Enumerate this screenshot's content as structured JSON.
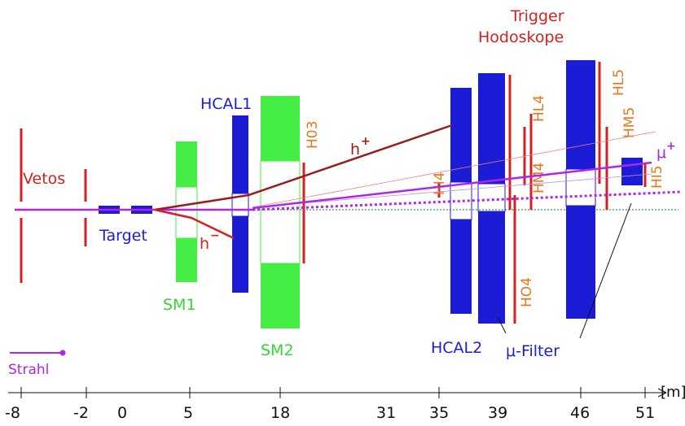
{
  "colors": {
    "veto": "#d42020",
    "target": "#1c1cd6",
    "magnet": "#33ee33",
    "hcal": "#1c1cd6",
    "hodoscope": "#d42020",
    "hodoscope_label": "#e8781e",
    "hadron_plus": "#9b1b1b",
    "hadron_minus": "#d42020",
    "muon": "#b026e8",
    "axis": "#111111"
  },
  "labels": {
    "vetos": "Vetos",
    "target": "Target",
    "sm1": "SM1",
    "sm2": "SM2",
    "hcal1": "HCAL1",
    "hcal2": "HCAL2",
    "mu_filter": "μ-Filter",
    "trigger_line1": "Trigger",
    "trigger_line2": "Hodoskope",
    "strahl": "Strahl",
    "h_plus": "h",
    "h_plus_sign": "+",
    "h_minus": "h",
    "h_minus_sign": "−",
    "mu_plus": "μ",
    "mu_plus_sign": "+",
    "h03": "H03",
    "hi4": "HI4",
    "hl4": "HL4",
    "hm4": "HM4",
    "ho4": "HO4",
    "hl5": "HL5",
    "hm5": "HM5",
    "hi5": "HI5"
  },
  "axis": {
    "unit": "[m]",
    "ticks": [
      "-8",
      "-2",
      "0",
      "5",
      "18",
      "31",
      "35",
      "39",
      "46",
      "51"
    ]
  }
}
